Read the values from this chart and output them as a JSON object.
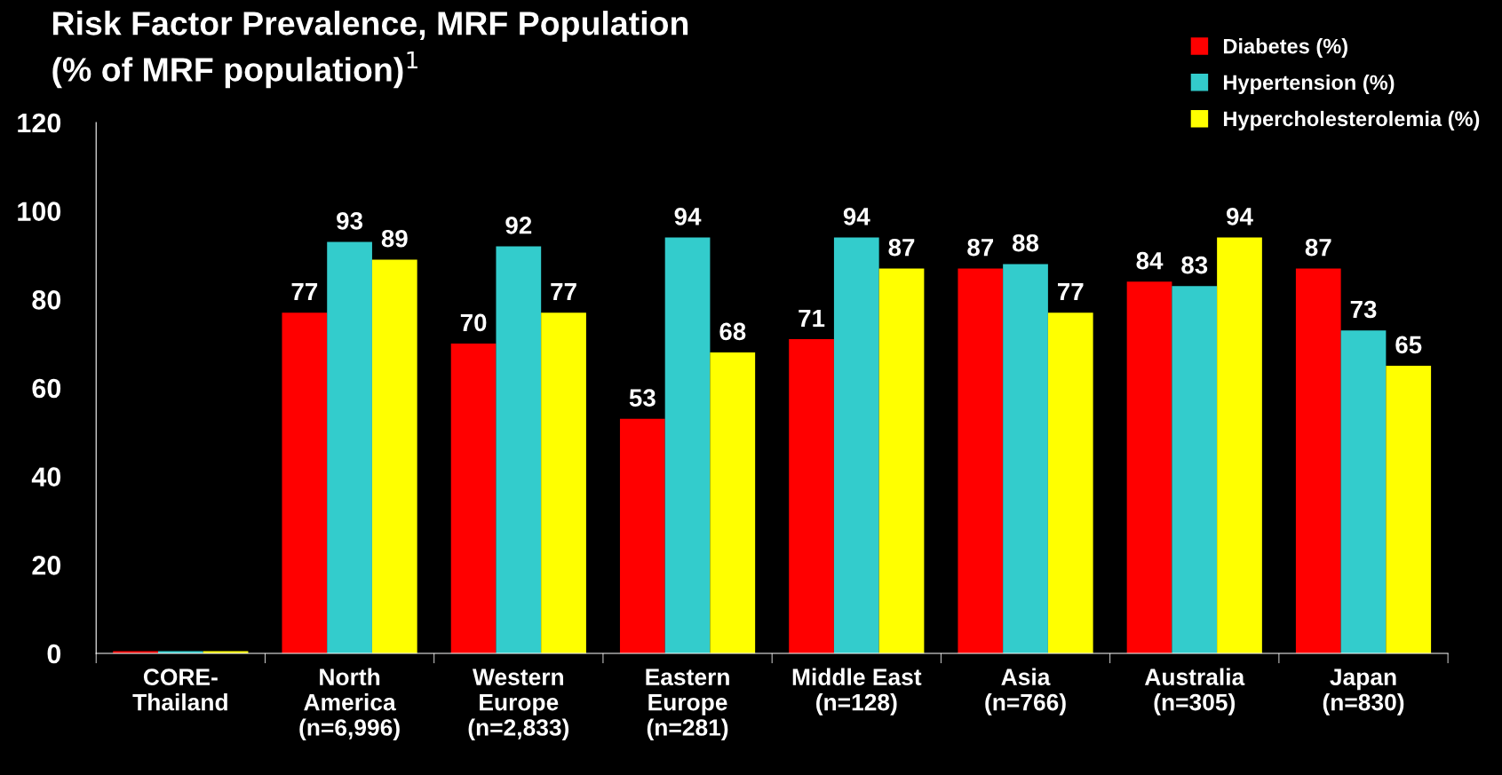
{
  "chart_data": {
    "type": "bar",
    "title": "Risk Factor Prevalence, MRF Population",
    "subtitle": "(% of MRF population)$^{1}$",
    "categories": [
      "CORE-\nThailand",
      "North\nAmerica\n(n=6,996)",
      "Western\nEurope\n(n=2,833)",
      "Eastern\nEurope\n(n=281)",
      "Middle East\n(n=128)",
      "Asia\n(n=766)",
      "Australia\n(n=305)",
      "Japan\n(n=830)"
    ],
    "series": [
      {
        "name": "Diabetes (%)",
        "color": "#ff0000",
        "values": [
          0.5,
          77,
          70,
          53,
          71,
          87,
          84,
          87
        ],
        "value_labels": [
          null,
          "77",
          "70",
          "53",
          "71",
          "87",
          "84",
          "87"
        ]
      },
      {
        "name": "Hypertension (%)",
        "color": "#33cccc",
        "values": [
          0.5,
          93,
          92,
          94,
          94,
          88,
          83,
          73
        ],
        "value_labels": [
          null,
          "93",
          "92",
          "94",
          "94",
          "88",
          "83",
          "73"
        ]
      },
      {
        "name": "Hypercholesterolemia (%)",
        "color": "#ffff00",
        "values": [
          0.5,
          89,
          77,
          68,
          87,
          77,
          94,
          65
        ],
        "value_labels": [
          null,
          "89",
          "77",
          "68",
          "87",
          "77",
          "94",
          "65"
        ]
      }
    ],
    "ylim": [
      0,
      120
    ],
    "yticks": [
      0,
      20,
      40,
      60,
      80,
      100,
      120
    ],
    "grid": false,
    "legend": "top right"
  }
}
